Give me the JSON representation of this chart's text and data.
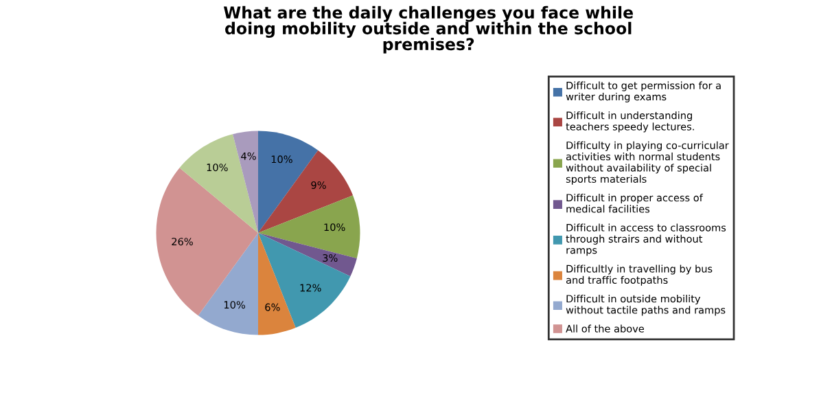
{
  "chart_data": {
    "type": "pie",
    "title": "What are the daily challenges you face while\ndoing mobility outside and within the school\npremises?",
    "categories": [
      "Difficult to get permission for a\nwriter during exams",
      "Difficult in understanding\nteachers speedy lectures.",
      "Difficulty in playing co-curricular\nactivities with normal students\nwithout availability of special\nsports materials",
      "Difficult in proper access of\nmedical facilities",
      "Difficult in access to classrooms\nthrough strairs and without\nramps",
      "Difficultly in travelling by bus\nand traffic footpaths",
      "Difficult in outside mobility\nwithout tactile paths and ramps",
      "All of the above",
      null,
      null
    ],
    "values": [
      10,
      9,
      10,
      3,
      12,
      6,
      10,
      26,
      10,
      4
    ],
    "value_labels": [
      "10%",
      "9%",
      "10%",
      "3%",
      "12%",
      "6%",
      "10%",
      "26%",
      "10%",
      "4%"
    ],
    "colors": [
      "#4572a7",
      "#aa4643",
      "#89a54e",
      "#71588f",
      "#4198af",
      "#db843d",
      "#93a9cf",
      "#d19392",
      "#b9cd96",
      "#a99bbd"
    ],
    "legend": "right"
  }
}
